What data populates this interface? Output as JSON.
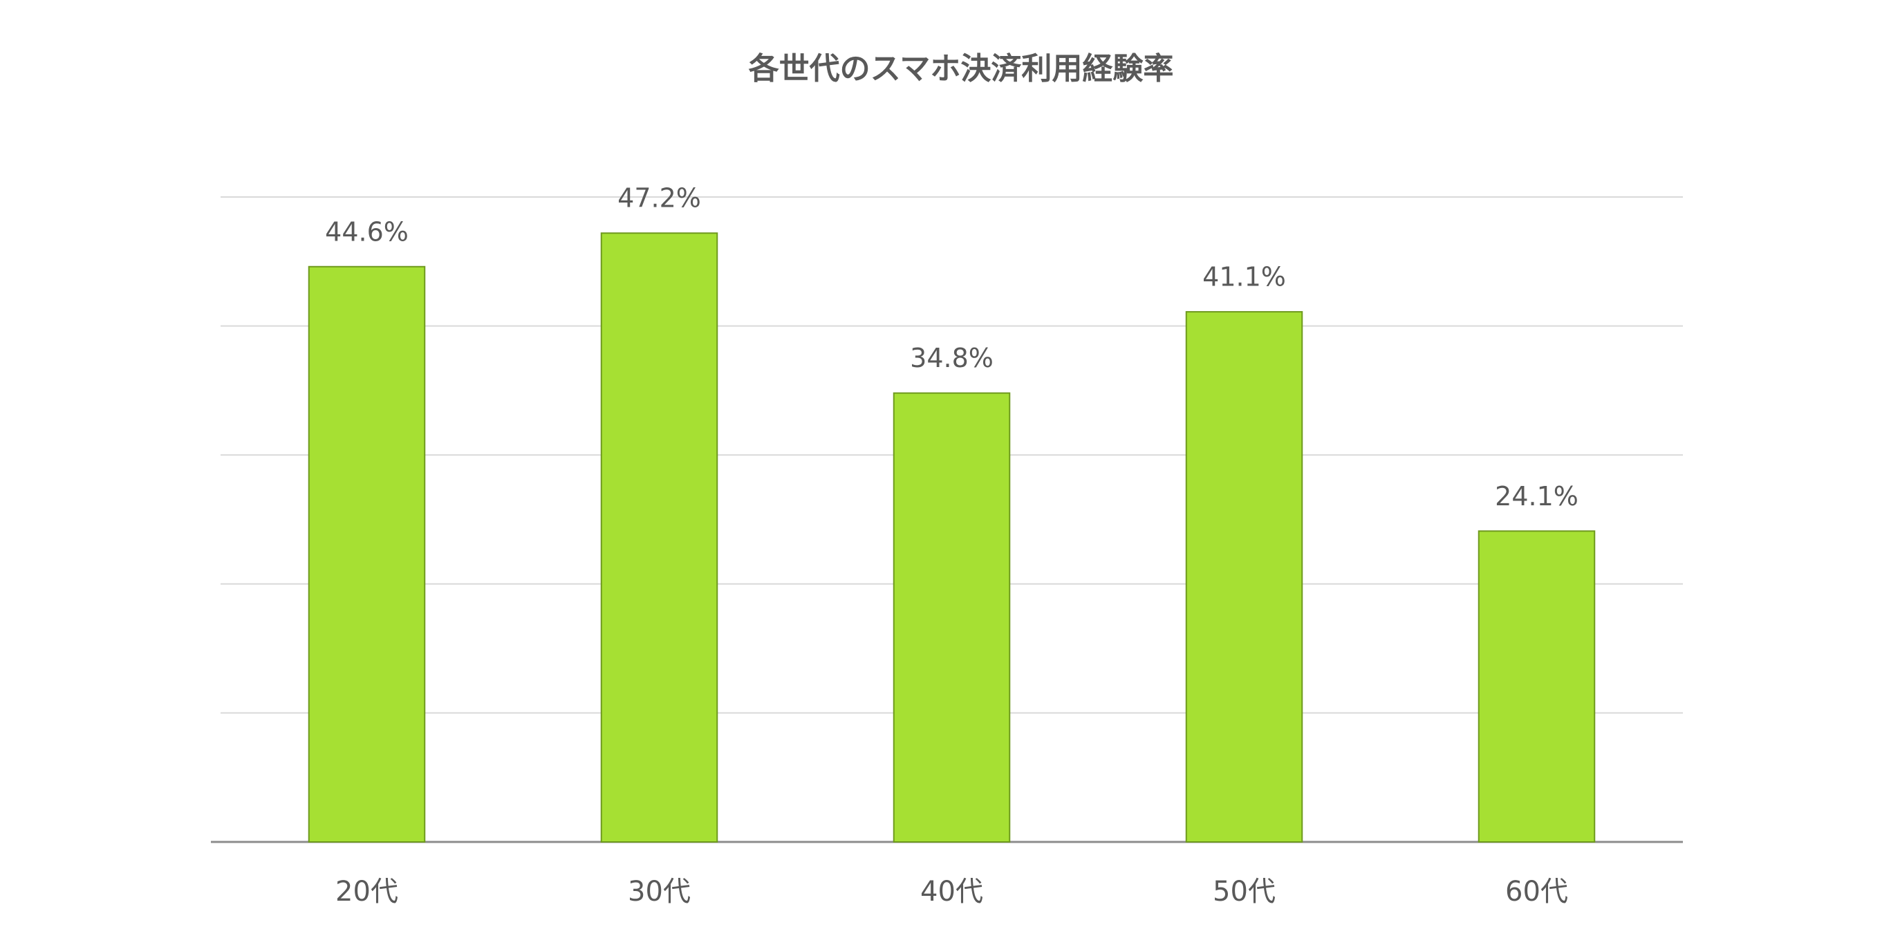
{
  "chart_data": {
    "type": "bar",
    "title": "各世代のスマホ決済利用経験率",
    "categories": [
      "20代",
      "30代",
      "40代",
      "50代",
      "60代"
    ],
    "values": [
      44.6,
      47.2,
      34.8,
      41.1,
      24.1
    ],
    "value_labels": [
      "44.6%",
      "47.2%",
      "34.8%",
      "41.1%",
      "24.1%"
    ],
    "color": "#a6e033",
    "ylim": [
      0,
      50
    ],
    "yticks": [
      0,
      10,
      20,
      30,
      40,
      50
    ],
    "grid": true
  }
}
